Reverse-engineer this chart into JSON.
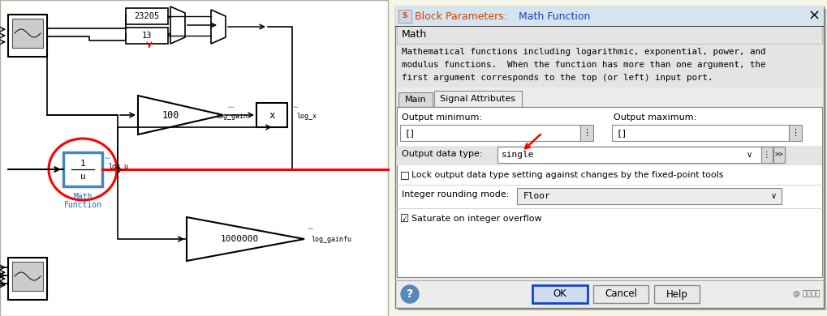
{
  "bg_color": "#f5f5e8",
  "simulink_bg": "#ffffff",
  "dialog_bg": "#f0f0f0",
  "dialog_title_text": "Block Parameters: Math Function",
  "section_title": "Math",
  "description_line1": "Mathematical functions including logarithmic, exponential, power, and",
  "description_line2": "modulus functions.  When the function has more than one argument, the",
  "description_line3": "first argument corresponds to the top (or left) input port.",
  "tab1": "Main",
  "tab2": "Signal Attributes",
  "field_output_min": "Output minimum:",
  "field_output_max": "Output maximum:",
  "field_output_type": "Output data type:",
  "field_output_type_val": "single",
  "field_lock": "Lock output data type setting against changes by the fixed-point tools",
  "field_round": "Integer rounding mode:",
  "field_round_val": "Floor",
  "field_saturate": "Saturate on integer overflow",
  "btn_ok": "OK",
  "btn_cancel": "Cancel",
  "btn_help": "Help",
  "lbl_23205": "23205",
  "lbl_13": "13",
  "lbl_100": "100",
  "lbl_log_gain": "log_gain",
  "lbl_x": "x",
  "lbl_log_x": "log_x",
  "lbl_log_u": "log_u",
  "lbl_math": "Math",
  "lbl_function": "Function",
  "lbl_1000000": "1000000",
  "lbl_log_gainfu": "log_gainfu",
  "orange_color": "#cc4400",
  "blue_color": "#1144cc",
  "blue_block_color": "#4488bb",
  "red_color": "#cc0000",
  "text_color": "#000000",
  "light_blue_text": "#2266aa"
}
